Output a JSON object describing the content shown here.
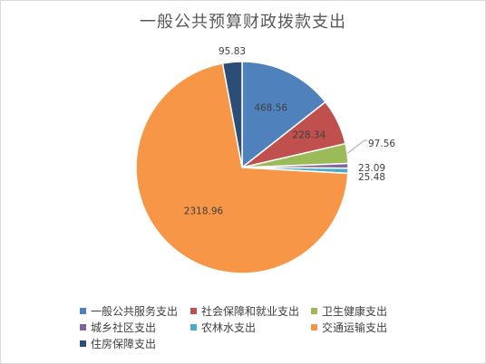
{
  "chart_data": {
    "type": "pie",
    "title": "一般公共预算财政拨款支出",
    "legend_position": "bottom",
    "slices": [
      {
        "name": "一般公共服务支出",
        "value": 468.56,
        "label": "468.56",
        "color": "#4f81bd"
      },
      {
        "name": "社会保障和就业支出",
        "value": 228.34,
        "label": "228.34",
        "color": "#c0504d"
      },
      {
        "name": "卫生健康支出",
        "value": 97.56,
        "label": "97.56",
        "color": "#9bbb59"
      },
      {
        "name": "城乡社区支出",
        "value": 23.09,
        "label": "23.09",
        "color": "#8064a2"
      },
      {
        "name": "农林水支出",
        "value": 25.48,
        "label": "25.48",
        "color": "#4bacc6"
      },
      {
        "name": "交通运输支出",
        "value": 2318.96,
        "label": "2318.96",
        "color": "#f79646"
      },
      {
        "name": "住房保障支出",
        "value": 95.83,
        "label": "95.83",
        "color": "#2c4d75"
      }
    ]
  }
}
